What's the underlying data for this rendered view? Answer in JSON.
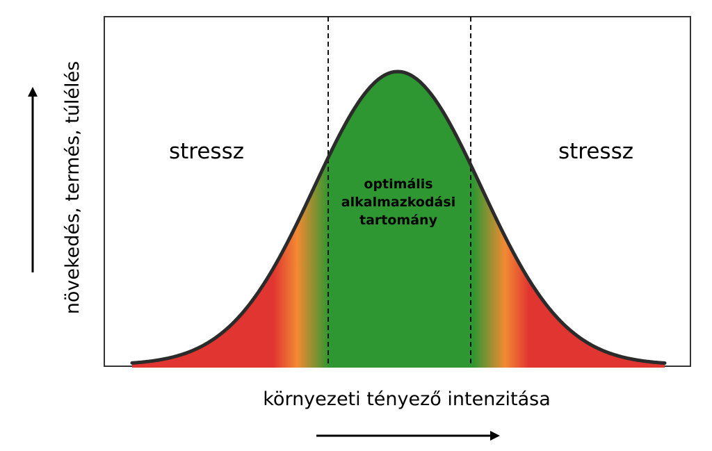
{
  "labels": {
    "stress_left": "stressz",
    "stress_right": "stressz",
    "optimal_lines": [
      "optimális",
      "alkalmazkodási",
      "tartomány"
    ],
    "x_axis": "környezeti tényező intenzitása",
    "y_axis": "növekedés, termés, túlélés"
  },
  "colors": {
    "stress": "#e03530",
    "transition": "#f28a33",
    "optimal": "#2e9731",
    "outline": "#2b2b2b",
    "frame": "#333333"
  }
}
